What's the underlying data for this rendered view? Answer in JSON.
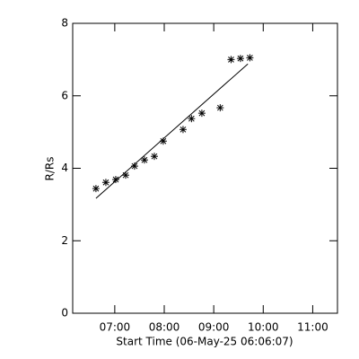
{
  "chart_data": {
    "type": "scatter",
    "xlabel": "Start Time (06-May-25 06:06:07)",
    "ylabel": "R/Rs",
    "x": [
      6.62,
      6.82,
      7.02,
      7.22,
      7.4,
      7.6,
      7.8,
      7.98,
      8.38,
      8.55,
      8.76,
      9.13,
      9.35,
      9.54,
      9.73
    ],
    "y": [
      3.44,
      3.61,
      3.69,
      3.81,
      4.06,
      4.23,
      4.33,
      4.75,
      5.07,
      5.37,
      5.52,
      5.67,
      7.0,
      7.03,
      7.05
    ],
    "fit_line": {
      "x": [
        6.62,
        9.69
      ],
      "y": [
        3.17,
        6.88
      ]
    },
    "color": "#000000",
    "xlim": [
      6.15,
      11.5
    ],
    "ylim": [
      0,
      8
    ],
    "xticks": [
      {
        "value": 7,
        "label": "07:00"
      },
      {
        "value": 8,
        "label": "08:00"
      },
      {
        "value": 9,
        "label": "09:00"
      },
      {
        "value": 10,
        "label": "10:00"
      },
      {
        "value": 11,
        "label": "11:00"
      }
    ],
    "yticks": [
      0,
      2,
      4,
      6,
      8
    ]
  }
}
